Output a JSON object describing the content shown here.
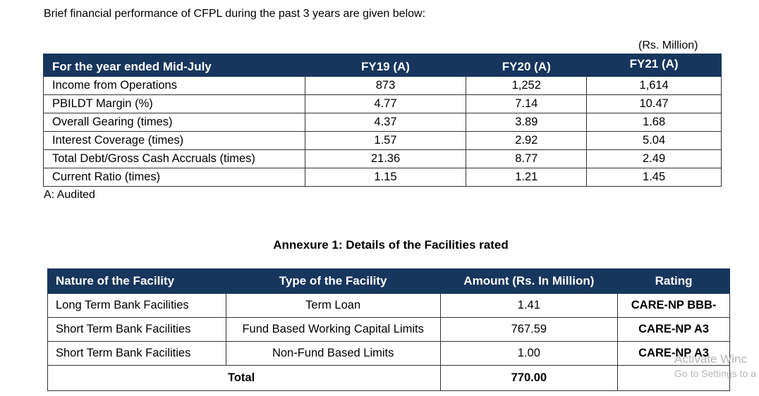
{
  "intro": "Brief financial performance of CFPL during the past 3 years are given below:",
  "unit_note": "(Rs. Million)",
  "financial_table": {
    "headers": [
      "For the year ended Mid-July",
      "FY19 (A)",
      "FY20 (A)",
      "FY21 (A)"
    ],
    "rows": [
      [
        "Income from Operations",
        "873",
        "1,252",
        "1,614"
      ],
      [
        "PBILDT Margin (%)",
        "4.77",
        "7.14",
        "10.47"
      ],
      [
        "Overall Gearing (times)",
        "4.37",
        "3.89",
        "1.68"
      ],
      [
        "Interest Coverage (times)",
        "1.57",
        "2.92",
        "5.04"
      ],
      [
        "Total Debt/Gross Cash Accruals (times)",
        "21.36",
        "8.77",
        "2.49"
      ],
      [
        "Current Ratio (times)",
        "1.15",
        "1.21",
        "1.45"
      ]
    ]
  },
  "audited_note": "A: Audited",
  "annexure_title": "Annexure 1: Details of the Facilities rated",
  "facilities_table": {
    "headers": [
      "Nature of the Facility",
      "Type of the Facility",
      "Amount (Rs. In Million)",
      "Rating"
    ],
    "rows": [
      [
        "Long Term Bank Facilities",
        "Term Loan",
        "1.41",
        "CARE-NP BBB-"
      ],
      [
        "Short Term Bank Facilities",
        "Fund Based Working Capital Limits",
        "767.59",
        "CARE-NP A3"
      ],
      [
        "Short Term Bank Facilities",
        "Non-Fund Based Limits",
        "1.00",
        "CARE-NP A3"
      ]
    ],
    "total_label": "Total",
    "total_amount": "770.00"
  },
  "watermark": {
    "line1": "Activate Winc",
    "line2": "Go to Settings to a"
  }
}
